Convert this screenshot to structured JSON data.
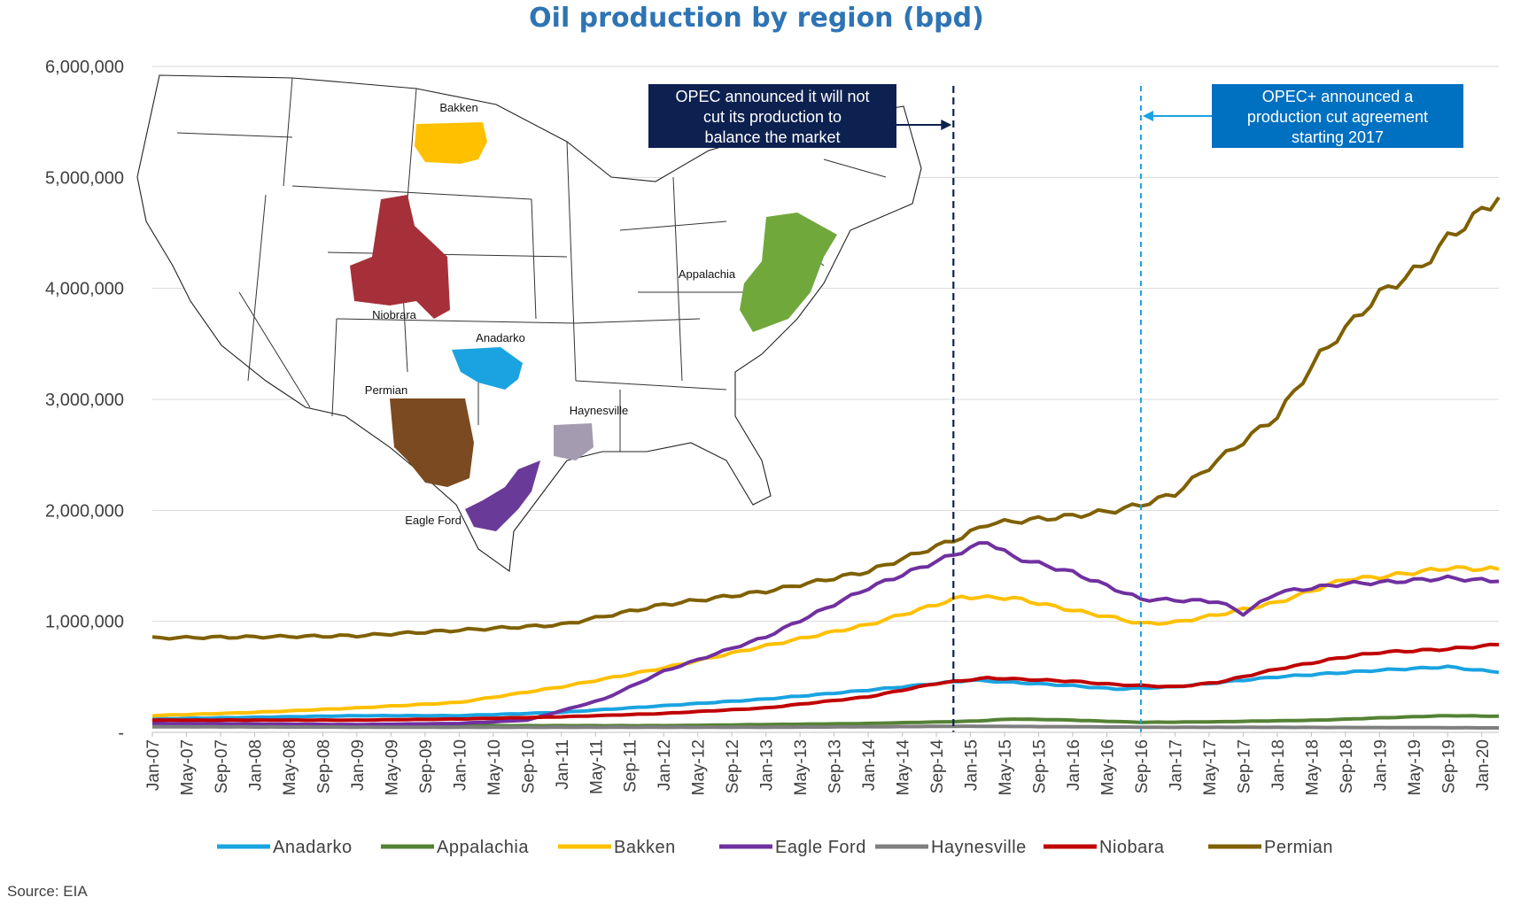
{
  "chart_data": {
    "type": "line",
    "title": "Oil production by region (bpd)",
    "ylim": [
      0,
      6000000
    ],
    "yticks": [
      0,
      1000000,
      2000000,
      3000000,
      4000000,
      5000000,
      6000000
    ],
    "ytick_labels": [
      "-",
      "1,000,000",
      "2,000,000",
      "3,000,000",
      "4,000,000",
      "5,000,000",
      "6,000,000"
    ],
    "xlim": [
      "2007-01",
      "2020-03"
    ],
    "xtick_labels": [
      "Jan-07",
      "May-07",
      "Sep-07",
      "Jan-08",
      "May-08",
      "Sep-08",
      "Jan-09",
      "May-09",
      "Sep-09",
      "Jan-10",
      "May-10",
      "Sep-10",
      "Jan-11",
      "May-11",
      "Sep-11",
      "Jan-12",
      "May-12",
      "Sep-12",
      "Jan-13",
      "May-13",
      "Sep-13",
      "Jan-14",
      "May-14",
      "Sep-14",
      "Jan-15",
      "May-15",
      "Sep-15",
      "Jan-16",
      "May-16",
      "Sep-16",
      "Jan-17",
      "May-17",
      "Sep-17",
      "Jan-18",
      "May-18",
      "Sep-18",
      "Jan-19",
      "May-19",
      "Sep-19",
      "Jan-20"
    ],
    "grid": true,
    "legend_position": "bottom",
    "series": [
      {
        "name": "Anadarko",
        "color": "#1aa3e0",
        "x": [
          "2007-01",
          "2009-01",
          "2010-01",
          "2011-01",
          "2012-01",
          "2013-01",
          "2014-01",
          "2015-01",
          "2015-06",
          "2016-01",
          "2016-06",
          "2017-01",
          "2018-01",
          "2019-01",
          "2019-09",
          "2020-03"
        ],
        "y": [
          120000,
          150000,
          150000,
          180000,
          240000,
          300000,
          380000,
          470000,
          450000,
          420000,
          390000,
          410000,
          500000,
          560000,
          590000,
          540000
        ]
      },
      {
        "name": "Appalachia",
        "color": "#548235",
        "x": [
          "2007-01",
          "2010-01",
          "2012-01",
          "2014-01",
          "2015-01",
          "2015-06",
          "2016-01",
          "2016-09",
          "2017-06",
          "2018-06",
          "2019-01",
          "2019-09",
          "2020-03"
        ],
        "y": [
          60000,
          60000,
          60000,
          80000,
          100000,
          120000,
          110000,
          90000,
          95000,
          110000,
          130000,
          150000,
          145000
        ]
      },
      {
        "name": "Bakken",
        "color": "#ffc000",
        "x": [
          "2007-01",
          "2008-01",
          "2009-01",
          "2010-01",
          "2011-01",
          "2012-01",
          "2013-01",
          "2014-01",
          "2014-12",
          "2015-06",
          "2016-01",
          "2016-06",
          "2016-09",
          "2017-01",
          "2017-06",
          "2018-01",
          "2018-09",
          "2019-01",
          "2019-09",
          "2020-03"
        ],
        "y": [
          150000,
          180000,
          220000,
          270000,
          410000,
          580000,
          780000,
          970000,
          1220000,
          1210000,
          1100000,
          1030000,
          980000,
          990000,
          1060000,
          1170000,
          1380000,
          1400000,
          1480000,
          1470000
        ]
      },
      {
        "name": "Eagle Ford",
        "color": "#7030a0",
        "x": [
          "2007-01",
          "2009-01",
          "2010-01",
          "2010-09",
          "2011-06",
          "2012-01",
          "2013-01",
          "2014-01",
          "2014-09",
          "2015-03",
          "2015-06",
          "2016-01",
          "2016-09",
          "2017-06",
          "2017-09",
          "2018-01",
          "2018-09",
          "2019-01",
          "2019-09",
          "2020-03"
        ],
        "y": [
          80000,
          70000,
          80000,
          110000,
          300000,
          550000,
          860000,
          1300000,
          1540000,
          1720000,
          1580000,
          1440000,
          1200000,
          1180000,
          1070000,
          1260000,
          1340000,
          1350000,
          1390000,
          1360000
        ]
      },
      {
        "name": "Haynesville",
        "color": "#7f7f7f",
        "x": [
          "2007-01",
          "2010-01",
          "2013-01",
          "2015-01",
          "2017-01",
          "2018-01",
          "2020-03"
        ],
        "y": [
          50000,
          45000,
          45000,
          55000,
          45000,
          45000,
          40000
        ]
      },
      {
        "name": "Niobara",
        "color": "#c00000",
        "x": [
          "2007-01",
          "2008-01",
          "2009-01",
          "2010-01",
          "2011-01",
          "2012-01",
          "2013-01",
          "2014-01",
          "2014-09",
          "2015-03",
          "2016-01",
          "2016-06",
          "2017-01",
          "2017-06",
          "2018-01",
          "2018-09",
          "2019-01",
          "2019-09",
          "2020-03"
        ],
        "y": [
          110000,
          110000,
          110000,
          120000,
          140000,
          170000,
          220000,
          320000,
          440000,
          490000,
          460000,
          430000,
          410000,
          450000,
          570000,
          680000,
          720000,
          750000,
          790000
        ]
      },
      {
        "name": "Permian",
        "color": "#7f6000",
        "x": [
          "2007-01",
          "2008-01",
          "2009-01",
          "2010-01",
          "2011-01",
          "2012-01",
          "2013-01",
          "2014-01",
          "2014-12",
          "2015-03",
          "2015-06",
          "2016-01",
          "2016-06",
          "2016-09",
          "2017-01",
          "2017-06",
          "2018-01",
          "2018-06",
          "2019-01",
          "2019-06",
          "2019-09",
          "2020-03"
        ],
        "y": [
          850000,
          860000,
          870000,
          920000,
          970000,
          1150000,
          1270000,
          1450000,
          1760000,
          1880000,
          1900000,
          1950000,
          2000000,
          2050000,
          2150000,
          2450000,
          2850000,
          3400000,
          3950000,
          4200000,
          4450000,
          4820000
        ]
      }
    ],
    "annotations": [
      {
        "text": [
          "OPEC announced it will not",
          "cut its production to",
          "balance the market"
        ],
        "x": "2014-11",
        "line_color": "#0d2150",
        "box_color": "#0d2150"
      },
      {
        "text": [
          "OPEC+ announced a",
          "production cut agreement",
          "starting 2017"
        ],
        "x": "2016-09",
        "line_color": "#1aa3e0",
        "box_color": "#0070c0"
      }
    ]
  },
  "map": {
    "labels": [
      "Bakken",
      "Niobrara",
      "Anadarko",
      "Permian",
      "Haynesville",
      "Appalachia",
      "Eagle Ford"
    ]
  },
  "footer": {
    "source": "Source: EIA"
  }
}
